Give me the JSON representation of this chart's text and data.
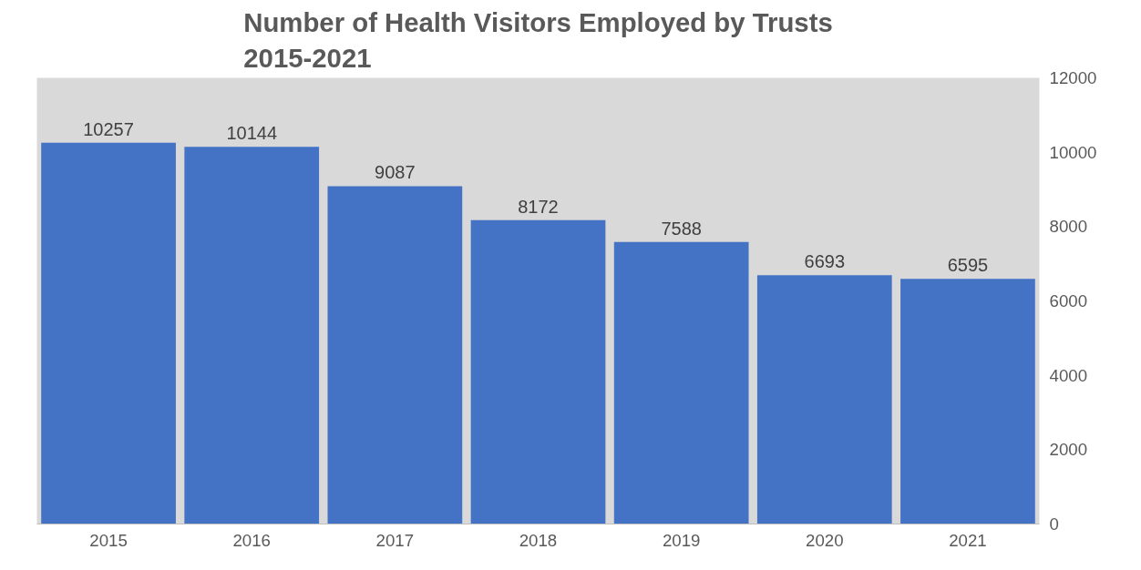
{
  "chart_data": {
    "type": "bar",
    "title": "Number of Health Visitors Employed by Trusts\n2015-2021",
    "categories": [
      "2015",
      "2016",
      "2017",
      "2018",
      "2019",
      "2020",
      "2021"
    ],
    "values": [
      10257,
      10144,
      9087,
      8172,
      7588,
      6693,
      6595
    ],
    "color": "#4472c4",
    "ylim": [
      0,
      12000
    ],
    "yticks": [
      0,
      2000,
      4000,
      6000,
      8000,
      10000,
      12000
    ],
    "grid": false,
    "data_labels": true
  }
}
